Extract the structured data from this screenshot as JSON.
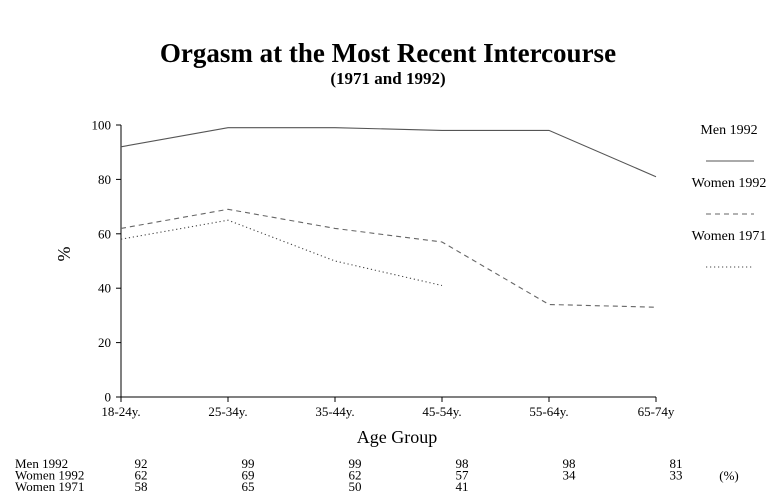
{
  "chart_data": {
    "type": "line",
    "title": "Orgasm at the Most Recent Intercourse",
    "subtitle": "(1971 and 1992)",
    "xlabel": "Age Group",
    "ylabel": "%",
    "categories": [
      "18-24y.",
      "25-34y.",
      "35-44y.",
      "45-54y.",
      "55-64y.",
      "65-74y"
    ],
    "ylim": [
      0,
      100
    ],
    "yticks": [
      "0",
      "20",
      "40",
      "60",
      "80",
      "100"
    ],
    "grid": false,
    "legend_position": "right",
    "series": [
      {
        "name": "Men 1992",
        "values": [
          92,
          99,
          99,
          98,
          98,
          81
        ],
        "style": "solid",
        "color": "#555555"
      },
      {
        "name": "Women 1992",
        "values": [
          62,
          69,
          62,
          57,
          34,
          33
        ],
        "style": "dashed",
        "color": "#666666"
      },
      {
        "name": "Women 1971",
        "values": [
          58,
          65,
          50,
          41,
          null,
          null
        ],
        "style": "dotted",
        "color": "#444444"
      }
    ],
    "data_table": {
      "unit_label": "(%)",
      "rows": [
        {
          "label": "Men 1992",
          "values": [
            "92",
            "99",
            "99",
            "98",
            "98",
            "81"
          ]
        },
        {
          "label": "Women 1992",
          "values": [
            "62",
            "69",
            "62",
            "57",
            "34",
            "33"
          ]
        },
        {
          "label": "Women 1971",
          "values": [
            "58",
            "65",
            "50",
            "41",
            "",
            ""
          ]
        }
      ]
    }
  }
}
